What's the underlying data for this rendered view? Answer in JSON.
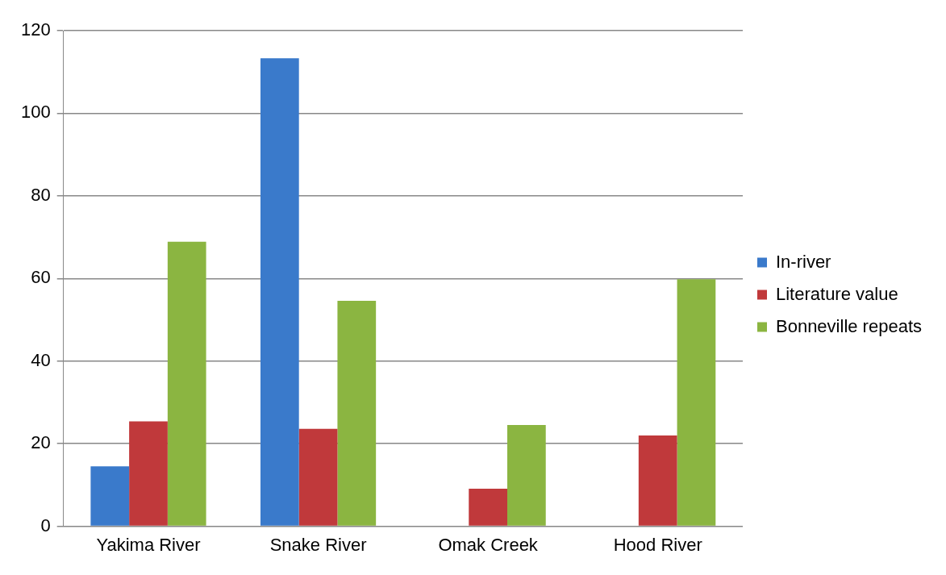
{
  "chart_data": {
    "type": "bar",
    "categories": [
      "Yakima River",
      "Snake River",
      "Omak Creek",
      "Hood River"
    ],
    "series": [
      {
        "name": "In-river",
        "color": "#3a7acb",
        "values": [
          14.5,
          113.3,
          null,
          null
        ]
      },
      {
        "name": "Literature value",
        "color": "#c0393b",
        "values": [
          25.4,
          23.6,
          9.1,
          22.0
        ]
      },
      {
        "name": "Bonneville repeats",
        "color": "#8bb541",
        "values": [
          68.9,
          54.6,
          24.5,
          59.8
        ]
      }
    ],
    "ylim": [
      0,
      120
    ],
    "yticks": [
      0,
      20,
      40,
      60,
      80,
      100,
      120
    ],
    "grid": "y",
    "legend": "right"
  }
}
